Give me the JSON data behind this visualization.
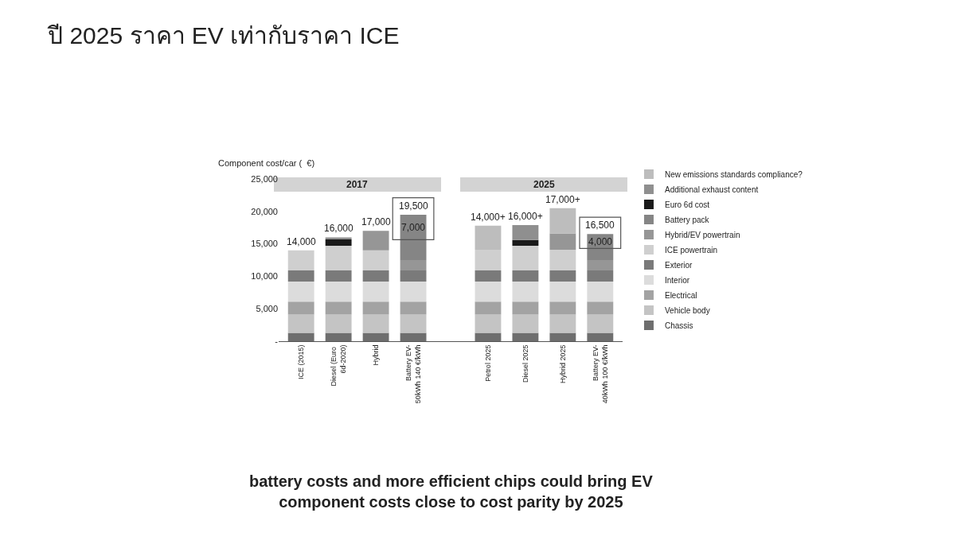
{
  "chart_data": {
    "type": "bar",
    "stacked": true,
    "title": "ปี 2025 ราคา EV เท่ากับราคา ICE",
    "ylabel": "Component cost/car (  €)",
    "categories": [
      "ICE (2015)",
      "Diesel (Euro 6d-2020)",
      "Hybrid",
      "Battery EV-50kWh 140 €/kWh",
      null,
      "Petrol 2025",
      "Diesel 2025",
      "Hybrid 2025",
      "Battery EV-40kWh 100 €/kWh"
    ],
    "series": [
      {
        "name": "Chassis",
        "color": "#6e6e6e",
        "values": [
          1300,
          1300,
          1300,
          1300,
          null,
          1300,
          1300,
          1300,
          1300
        ]
      },
      {
        "name": "Vehicle body",
        "color": "#c4c4c4",
        "values": [
          2800,
          2800,
          2800,
          2800,
          null,
          2800,
          2800,
          2800,
          2800
        ]
      },
      {
        "name": "Electrical",
        "color": "#a3a3a3",
        "values": [
          2000,
          2000,
          2000,
          2000,
          null,
          2000,
          2000,
          2000,
          2000
        ]
      },
      {
        "name": "Interior",
        "color": "#dcdcdc",
        "values": [
          3100,
          3100,
          3100,
          3100,
          null,
          3100,
          3100,
          3100,
          3100
        ]
      },
      {
        "name": "Exterior",
        "color": "#7a7a7a",
        "values": [
          1700,
          1700,
          1700,
          1700,
          null,
          1700,
          1700,
          1700,
          1700
        ]
      },
      {
        "name": "ICE powertrain",
        "color": "#cfcfcf",
        "values": [
          3100,
          3800,
          3100,
          null,
          null,
          3200,
          3800,
          3200,
          null
        ]
      },
      {
        "name": "Hybrid/EV powertrain",
        "color": "#969696",
        "values": [
          null,
          null,
          3000,
          1600,
          null,
          null,
          null,
          2500,
          1600
        ]
      },
      {
        "name": "Battery pack",
        "color": "#858585",
        "values": [
          null,
          null,
          null,
          7000,
          null,
          null,
          null,
          null,
          4000
        ],
        "value_labels": [
          null,
          null,
          null,
          "7,000",
          null,
          null,
          null,
          null,
          "4,000"
        ]
      },
      {
        "name": "Euro 6d cost",
        "color": "#1a1a1a",
        "values": [
          null,
          1000,
          null,
          null,
          null,
          null,
          900,
          null,
          null
        ]
      },
      {
        "name": "Additional exhaust content",
        "color": "#8f8f8f",
        "values": [
          null,
          300,
          null,
          null,
          null,
          null,
          2300,
          null,
          null
        ]
      },
      {
        "name": "New emissions standards compliance?",
        "color": "#bdbdbd",
        "values": [
          null,
          null,
          null,
          null,
          null,
          3700,
          null,
          3900,
          null
        ]
      }
    ],
    "totals": [
      "14,000",
      "16,000",
      "17,000",
      "19,500",
      null,
      "14,000+",
      "16,000+",
      "17,000+",
      "16,500"
    ],
    "ylim": [
      0,
      25000
    ],
    "yticks": [
      {
        "value": 0,
        "label": "-"
      },
      {
        "value": 5000,
        "label": "5,000"
      },
      {
        "value": 10000,
        "label": "10,000"
      },
      {
        "value": 15000,
        "label": "15,000"
      },
      {
        "value": 20000,
        "label": "20,000"
      },
      {
        "value": 25000,
        "label": "25,000"
      }
    ],
    "grid": false,
    "legend": "right",
    "annotations": [
      "2017",
      "2025",
      "battery costs and more efficient chips could bring EV component costs close to cost parity by 2025"
    ]
  }
}
